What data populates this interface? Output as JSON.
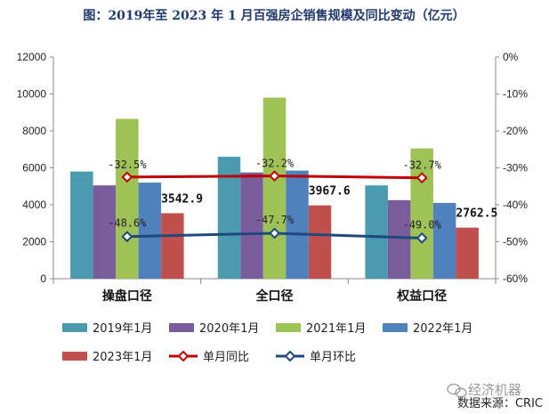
{
  "chart_data": {
    "type": "bar",
    "title": "图：2019年至 2023 年 1 月百强房企销售规模及同比变动（亿元）",
    "categories": [
      "操盘口径",
      "全口径",
      "权益口径"
    ],
    "series": [
      {
        "name": "2019年1月",
        "type": "bar",
        "axis": "left",
        "color": "#4a9bb0",
        "values": [
          5800,
          6600,
          5050
        ]
      },
      {
        "name": "2020年1月",
        "type": "bar",
        "axis": "left",
        "color": "#7a5c9c",
        "values": [
          5050,
          5750,
          4250
        ]
      },
      {
        "name": "2021年1月",
        "type": "bar",
        "axis": "left",
        "color": "#9fc257",
        "values": [
          8650,
          9800,
          7050
        ]
      },
      {
        "name": "2022年1月",
        "type": "bar",
        "axis": "left",
        "color": "#4f81bd",
        "values": [
          5200,
          5850,
          4100
        ]
      },
      {
        "name": "2023年1月",
        "type": "bar",
        "axis": "left",
        "color": "#c0504d",
        "values": [
          3542.9,
          3967.6,
          2762.5
        ]
      },
      {
        "name": "单月同比",
        "type": "line",
        "axis": "right",
        "color": "#c00000",
        "values": [
          -32.5,
          -32.2,
          -32.7
        ]
      },
      {
        "name": "单月环比",
        "type": "line",
        "axis": "right",
        "color": "#1f497d",
        "values": [
          -48.6,
          -47.7,
          -49.0
        ]
      }
    ],
    "bar_labels": [
      "3542.9",
      "3967.6",
      "2762.5"
    ],
    "yoy_labels": [
      "-32.5%",
      "-32.2%",
      "-32.7%"
    ],
    "mom_labels": [
      "-48.6%",
      "-47.7%",
      "-49.0%"
    ],
    "ylim": [
      0,
      12000
    ],
    "yticks": [
      "0",
      "2000",
      "4000",
      "6000",
      "8000",
      "10000",
      "12000"
    ],
    "y2lim": [
      -60,
      0
    ],
    "y2ticks": [
      "0%",
      "-10%",
      "-20%",
      "-30%",
      "-40%",
      "-50%",
      "-60%"
    ],
    "legend_position": "bottom"
  },
  "watermark": "经济机器",
  "source": "数据来源：CRIC"
}
